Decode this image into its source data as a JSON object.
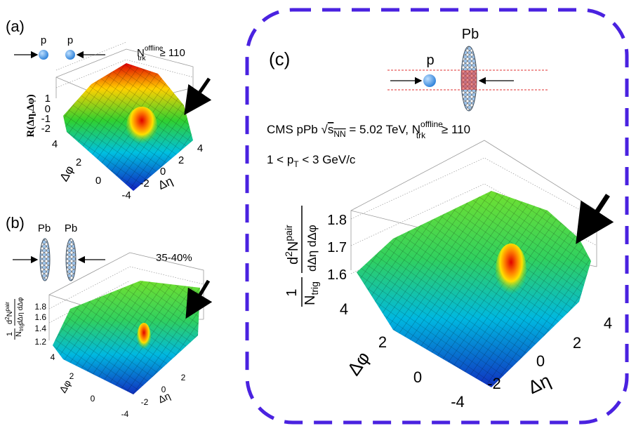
{
  "panels": [
    {
      "label": "(a)",
      "beams": [
        "p",
        "p"
      ],
      "condition": {
        "base": "N",
        "sup": "offline",
        "sub": "trk",
        "rest": "≥ 110"
      },
      "z_label": "R(Δη,Δφ)",
      "z_ticks": [
        1,
        0,
        -1,
        -2
      ],
      "phi_label": "Δφ",
      "phi_ticks": [
        4,
        2,
        0
      ],
      "eta_label": "Δη",
      "eta_ticks": [
        -4,
        -2,
        0,
        2,
        4
      ]
    },
    {
      "label": "(b)",
      "beams": [
        "Pb",
        "Pb"
      ],
      "centrality": "35-40%",
      "z_label": {
        "one": "1",
        "n": "N",
        "n_sub": "trig",
        "d": "d",
        "d_sup": "2",
        "num": "N",
        "num_sup": "pair",
        "den": "dΔη dΔφ"
      },
      "z_ticks": [
        1.8,
        1.6,
        1.4,
        1.2
      ],
      "phi_label": "Δφ",
      "phi_ticks": [
        4,
        2,
        0
      ],
      "eta_label": "Δη",
      "eta_ticks": [
        -4,
        -2,
        0,
        2
      ]
    },
    {
      "label": "(c)",
      "beams": [
        "p",
        "Pb"
      ],
      "system": {
        "pre": "CMS pPb ",
        "sqrt": "√",
        "s": "s",
        "s_sub": "NN",
        "energy": " = 5.02 TeV, ",
        "base": "N",
        "sup": "offline",
        "sub": "trk",
        "rest": " ≥ 110"
      },
      "pt_range": {
        "pre": "1 < p",
        "sub": "T",
        "post": " < 3 GeV/c"
      },
      "z_label": {
        "one": "1",
        "n": "N",
        "n_sub": "trig",
        "d": "d",
        "d_sup": "2",
        "num": "N",
        "num_sup": "pair",
        "den": "dΔη dΔφ"
      },
      "z_ticks": [
        1.8,
        1.7,
        1.6
      ],
      "phi_label": "Δφ",
      "phi_ticks": [
        4,
        2,
        0
      ],
      "eta_label": "Δη",
      "eta_ticks": [
        -4,
        -2,
        0,
        2,
        4
      ]
    }
  ]
}
